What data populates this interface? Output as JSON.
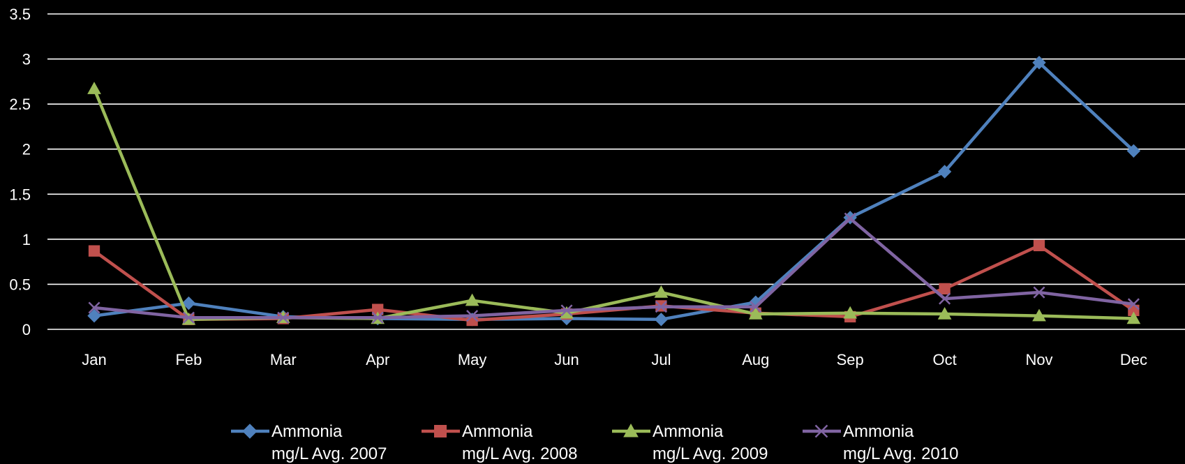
{
  "chart_data": {
    "type": "line",
    "title": "",
    "xlabel": "",
    "ylabel": "",
    "categories": [
      "Jan",
      "Feb",
      "Mar",
      "Apr",
      "May",
      "Jun",
      "Jul",
      "Aug",
      "Sep",
      "Oct",
      "Nov",
      "Dec"
    ],
    "y_ticks": [
      "0",
      "0.5",
      "1",
      "1.5",
      "2",
      "2.5",
      "3",
      "3.5"
    ],
    "ylim": [
      0,
      3.5
    ],
    "grid": true,
    "legend_position": "bottom",
    "background_color": "#000000",
    "text_color": "#ffffff",
    "series": [
      {
        "name": "Ammonia mg/L Avg. 2007",
        "name_lines": [
          "Ammonia",
          "mg/L Avg. 2007"
        ],
        "color": "#4f81bd",
        "marker": "diamond",
        "values": [
          0.15,
          0.29,
          0.14,
          0.12,
          0.11,
          0.12,
          0.11,
          0.3,
          1.24,
          1.75,
          2.96,
          1.98
        ]
      },
      {
        "name": "Ammonia mg/L Avg. 2008",
        "name_lines": [
          "Ammonia",
          "mg/L Avg. 2008"
        ],
        "color": "#c0504d",
        "marker": "square",
        "values": [
          0.87,
          0.11,
          0.12,
          0.22,
          0.1,
          0.17,
          0.26,
          0.18,
          0.14,
          0.45,
          0.93,
          0.21
        ]
      },
      {
        "name": "Ammonia mg/L Avg. 2009",
        "name_lines": [
          "Ammonia",
          "mg/L Avg. 2009"
        ],
        "color": "#9bbb59",
        "marker": "triangle",
        "values": [
          2.67,
          0.11,
          0.13,
          0.12,
          0.32,
          0.18,
          0.41,
          0.17,
          0.18,
          0.17,
          0.15,
          0.12
        ]
      },
      {
        "name": "Ammonia mg/L Avg. 2010",
        "name_lines": [
          "Ammonia",
          "mg/L Avg. 2010"
        ],
        "color": "#8064a2",
        "marker": "x",
        "values": [
          0.24,
          0.13,
          0.13,
          0.13,
          0.15,
          0.21,
          0.25,
          0.25,
          1.23,
          0.34,
          0.41,
          0.28
        ]
      }
    ]
  }
}
